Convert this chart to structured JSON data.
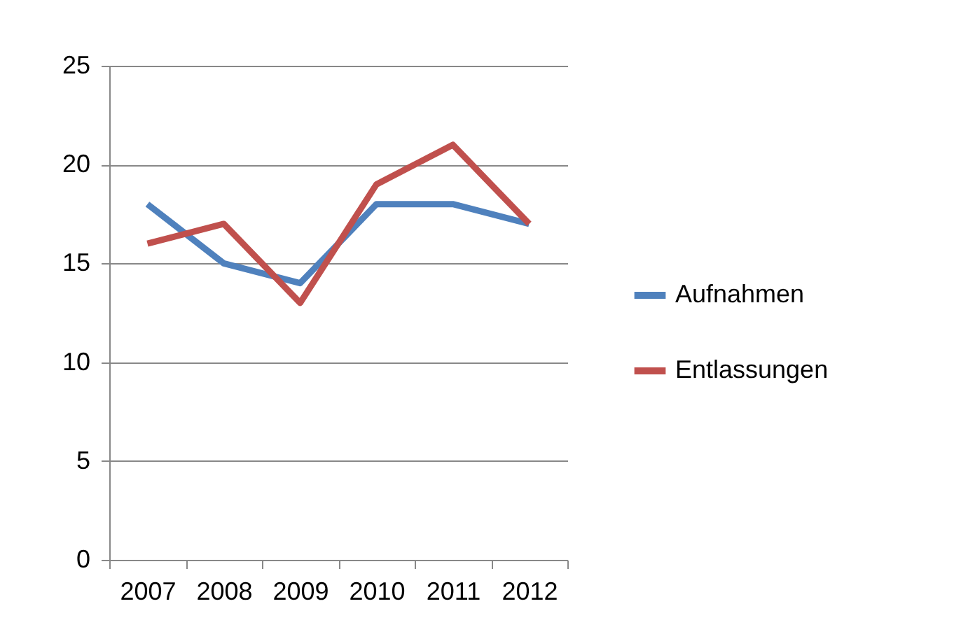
{
  "chart_data": {
    "type": "line",
    "categories": [
      "2007",
      "2008",
      "2009",
      "2010",
      "2011",
      "2012"
    ],
    "series": [
      {
        "name": "Aufnahmen",
        "color": "#4f81bd",
        "values": [
          18,
          15,
          14,
          18,
          18,
          17
        ]
      },
      {
        "name": "Entlassungen",
        "color": "#c0504d",
        "values": [
          16,
          17,
          13,
          19,
          21,
          17
        ]
      }
    ],
    "ylim": [
      0,
      25
    ],
    "yticks": [
      0,
      5,
      10,
      15,
      20,
      25
    ],
    "grid": "y",
    "legend": "right",
    "marker": "none",
    "line_style": "solid"
  }
}
